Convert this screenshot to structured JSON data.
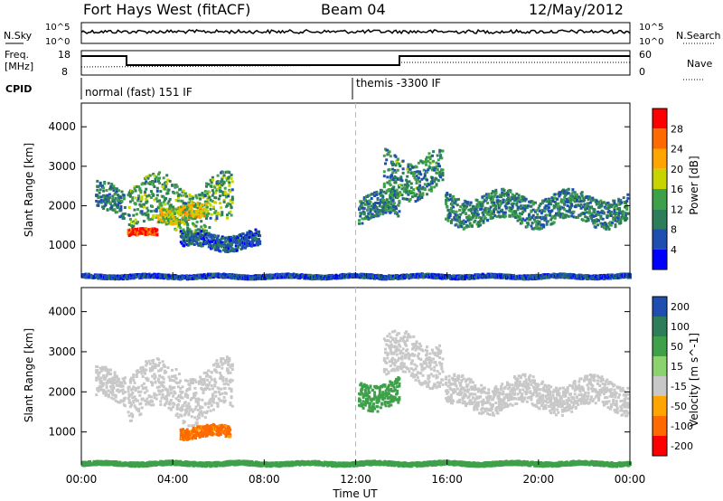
{
  "header": {
    "title": "Fort Hays West (fitACF)",
    "beam": "Beam 04",
    "date": "12/May/2012"
  },
  "panels": {
    "nsky": {
      "left_label": "N.Sky",
      "right_label": "N.Search",
      "left_ticks": [
        "10^5",
        "10^0"
      ],
      "right_ticks": [
        "10^5",
        "10^0"
      ]
    },
    "freq": {
      "left_label_line1": "Freq.",
      "left_label_line2": "[MHz]",
      "right_label": "Nave",
      "left_ticks": [
        "18",
        "8"
      ],
      "right_ticks": [
        "60",
        "0"
      ]
    },
    "cpid": {
      "label": "CPID",
      "programs": [
        {
          "name": "normal (fast) 151 IF",
          "start_hour": 0
        },
        {
          "name": "themis -3300 IF",
          "start_hour": 12
        }
      ]
    }
  },
  "colors": {
    "power": [
      "#0000ff",
      "#1f4eb0",
      "#2e7d5a",
      "#3fa04a",
      "#c8d400",
      "#ffa500",
      "#ff6a00",
      "#ff0000"
    ],
    "velocity": [
      "#ff0000",
      "#ff6a00",
      "#ffa500",
      "#c8c8c8",
      "#8cd26e",
      "#3fa04a",
      "#2e7d5a",
      "#1f4eb0"
    ]
  },
  "chart_data": [
    {
      "type": "heatmap",
      "name": "power",
      "xlabel": "",
      "ylabel": "Slant Range [km]",
      "y_ticks": [
        1000,
        2000,
        3000,
        4000
      ],
      "ylim": [
        180,
        4600
      ],
      "xlim_hours": [
        0,
        24
      ],
      "colorbar": {
        "label": "Power [dB]",
        "ticks": [
          "4",
          "8",
          "12",
          "16",
          "20",
          "24",
          "28"
        ],
        "range": [
          0,
          32
        ]
      },
      "bands": [
        {
          "t0": 0.6,
          "t1": 1.9,
          "r0": 1700,
          "r1": 2600,
          "value": 9
        },
        {
          "t0": 2.0,
          "t1": 6.6,
          "r0": 1300,
          "r1": 2800,
          "value": 13
        },
        {
          "t0": 2.0,
          "t1": 3.3,
          "r0": 1250,
          "r1": 1450,
          "value": 28
        },
        {
          "t0": 3.3,
          "t1": 5.5,
          "r0": 1600,
          "r1": 2100,
          "value": 18
        },
        {
          "t0": 4.3,
          "t1": 7.8,
          "r0": 900,
          "r1": 1400,
          "value": 7
        },
        {
          "t0": 12.1,
          "t1": 13.9,
          "r0": 1600,
          "r1": 2400,
          "value": 10
        },
        {
          "t0": 13.2,
          "t1": 15.8,
          "r0": 2200,
          "r1": 3500,
          "value": 11
        },
        {
          "t0": 15.9,
          "t1": 23.9,
          "r0": 1500,
          "r1": 2400,
          "value": 10
        },
        {
          "t0": 0.0,
          "t1": 24.0,
          "r0": 180,
          "r1": 300,
          "value": 6
        }
      ]
    },
    {
      "type": "heatmap",
      "name": "velocity",
      "xlabel": "Time UT",
      "ylabel": "Slant Range [km]",
      "x_ticks": [
        "00:00",
        "04:00",
        "08:00",
        "12:00",
        "16:00",
        "20:00",
        "00:00"
      ],
      "y_ticks": [
        1000,
        2000,
        3000,
        4000
      ],
      "ylim": [
        180,
        4600
      ],
      "xlim_hours": [
        0,
        24
      ],
      "colorbar": {
        "label": "Velocity [m s^-1]",
        "ticks": [
          "-200",
          "-100",
          "-50",
          "-15",
          "15",
          "50",
          "100",
          "200"
        ]
      },
      "bands": [
        {
          "t0": 0.6,
          "t1": 1.9,
          "r0": 1700,
          "r1": 2600,
          "value": 0
        },
        {
          "t0": 2.0,
          "t1": 6.6,
          "r0": 1300,
          "r1": 2800,
          "value": 0
        },
        {
          "t0": 4.3,
          "t1": 6.5,
          "r0": 850,
          "r1": 1200,
          "value": -120
        },
        {
          "t0": 12.1,
          "t1": 13.9,
          "r0": 1600,
          "r1": 2400,
          "value": 25
        },
        {
          "t0": 13.2,
          "t1": 15.8,
          "r0": 2200,
          "r1": 3500,
          "value": 5
        },
        {
          "t0": 15.9,
          "t1": 23.9,
          "r0": 1500,
          "r1": 2400,
          "value": 0
        },
        {
          "t0": 0.0,
          "t1": 24.0,
          "r0": 180,
          "r1": 300,
          "value": 30
        }
      ]
    }
  ]
}
